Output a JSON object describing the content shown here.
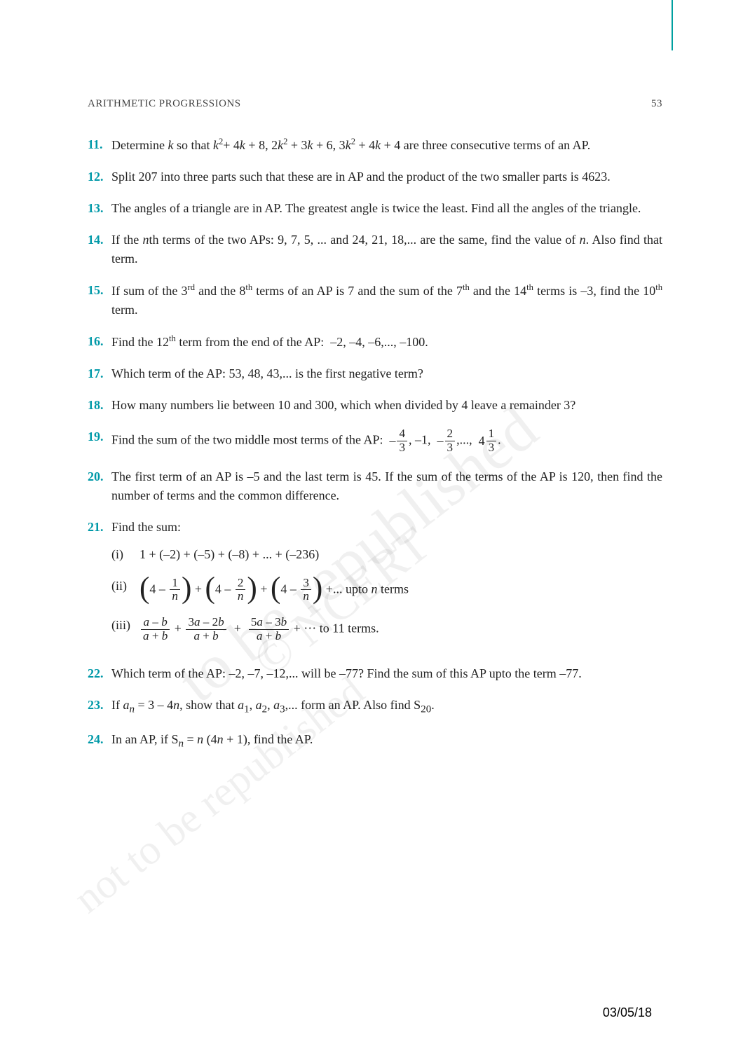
{
  "header": {
    "title": "ARITHMETIC PROGRESSIONS",
    "page_number": "53"
  },
  "problems": {
    "p11": {
      "num": "11.",
      "body_html": "Determine <span class='ital'>k</span> so that <span class='ital'>k</span><sup>2</sup>+ 4<span class='ital'>k</span> + 8, 2<span class='ital'>k</span><sup>2</sup> + 3<span class='ital'>k</span> + 6, 3<span class='ital'>k</span><sup>2</sup> + 4<span class='ital'>k</span> + 4 are three consecutive terms of an AP."
    },
    "p12": {
      "num": "12.",
      "body_html": "Split 207 into three parts such that these are in AP and the product of the two smaller parts is 4623."
    },
    "p13": {
      "num": "13.",
      "body_html": "The angles of a triangle are in AP. The greatest angle is twice the least. Find all the angles of the triangle."
    },
    "p14": {
      "num": "14.",
      "body_html": "If the <span class='ital'>n</span>th terms of the two APs: 9, 7, 5, ... and 24, 21, 18,... are the same, find the value of <span class='ital'>n</span>. Also find that term."
    },
    "p15": {
      "num": "15.",
      "body_html": "If sum of the 3<sup>rd</sup> and the 8<sup>th</sup> terms of an AP is 7 and the sum of the 7<sup>th</sup> and the 14<sup>th</sup> terms is –3, find the 10<sup>th</sup> term."
    },
    "p16": {
      "num": "16.",
      "body_html": "Find the 12<sup>th</sup> term from the end of the AP:&nbsp; –2, –4, –6,..., –100."
    },
    "p17": {
      "num": "17.",
      "body_html": "Which term of the AP: 53, 48, 43,... is the first negative term?"
    },
    "p18": {
      "num": "18.",
      "body_html": "How many numbers lie between 10 and 300, which when divided by 4 leave a remainder 3?"
    },
    "p19": {
      "num": "19.",
      "body_html": "Find the sum of the two middle most terms of the AP:&nbsp; <span style='display:inline-block;vertical-align:middle'>–</span><span class='frac'><span class='fnum'>4</span><span class='fden'>3</span></span>, –1, &nbsp;<span style='display:inline-block;vertical-align:middle'>–</span><span class='frac'><span class='fnum'>2</span><span class='fden'>3</span></span>,...,&nbsp; <span class='mixed'>4</span><span class='frac'><span class='fnum'>1</span><span class='fden'>3</span></span>."
    },
    "p20": {
      "num": "20.",
      "body_html": "The first term of an AP is –5 and the last term is 45. If the sum of the terms of the AP is 120,  then find the number of terms and the common difference."
    },
    "p21": {
      "num": "21.",
      "lead": "Find the sum:",
      "subs": {
        "i": {
          "label": "(i)",
          "html": "1 + (–2) + (–5) + (–8) + ... + (–236)"
        },
        "ii": {
          "label": "(ii)",
          "html": "<span class='big-paren'>(</span>4 – <span class='frac'><span class='fnum'>1</span><span class='fden ital'>n</span></span><span class='big-paren'>)</span> + <span class='big-paren'>(</span>4 – <span class='frac'><span class='fnum'>2</span><span class='fden ital'>n</span></span><span class='big-paren'>)</span> + <span class='big-paren'>(</span>4 – <span class='frac'><span class='fnum'>3</span><span class='fden ital'>n</span></span><span class='big-paren'>)</span> +... upto <span class='ital'>n</span> terms"
        },
        "iii": {
          "label": "(iii)",
          "html": "<span class='frac'><span class='fnum'><span class='ital'>a</span> – <span class='ital'>b</span></span><span class='fden'><span class='ital'>a</span> + <span class='ital'>b</span></span></span> + <span class='frac'><span class='fnum'>3<span class='ital'>a</span> – 2<span class='ital'>b</span></span><span class='fden'><span class='ital'>a</span> + <span class='ital'>b</span></span></span> &nbsp;+&nbsp; <span class='frac'><span class='fnum'>5<span class='ital'>a</span> – 3<span class='ital'>b</span></span><span class='fden'><span class='ital'>a</span> + <span class='ital'>b</span></span></span> + ··· to 11 terms."
        }
      }
    },
    "p22": {
      "num": "22.",
      "body_html": "Which term of the AP: –2, –7, –12,... will be –77? Find the sum of this AP upto the term –77."
    },
    "p23": {
      "num": "23.",
      "body_html": "If <span class='ital'>a<sub>n</sub></span> = 3 – 4<span class='ital'>n</span>, show that  <span class='ital'>a</span><sub>1</sub>, <span class='ital'>a</span><sub>2</sub>, <span class='ital'>a</span><sub>3</sub>,... form an AP. Also find S<sub>20</sub>."
    },
    "p24": {
      "num": "24.",
      "body_html": "In an AP, if S<span class='ital'><sub>n</sub></span> = <span class='ital'>n</span> (4<span class='ital'>n</span> + 1), find the AP."
    }
  },
  "watermarks": {
    "w1": "© NCERT",
    "w2": "to be republished",
    "w3": "not to be republished"
  },
  "footer_date": "03/05/18",
  "colors": {
    "accent": "#0099a8",
    "text": "#222222",
    "watermark": "rgba(0,0,0,0.06)",
    "vertical_rule": "#00a0a0",
    "background": "#ffffff"
  },
  "typography": {
    "body_fontsize_pt": 14,
    "header_fontsize_pt": 11,
    "font_family": "Times New Roman"
  }
}
